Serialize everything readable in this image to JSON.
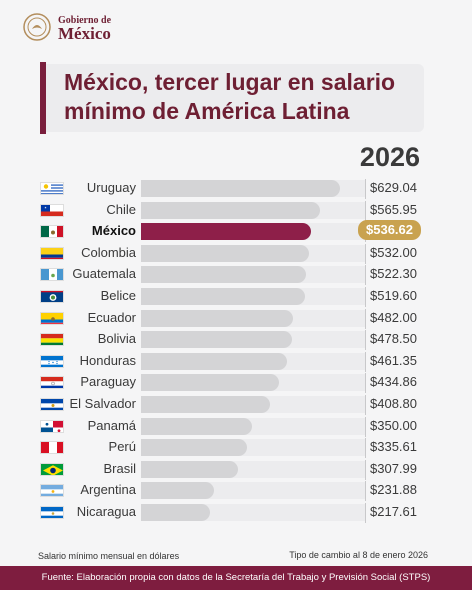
{
  "header": {
    "logo_line1": "Gobierno de",
    "logo_line2": "México",
    "title": "México, tercer lugar en salario mínimo de América Latina",
    "year": "2026"
  },
  "chart_data": {
    "type": "bar",
    "orientation": "horizontal",
    "categories": [
      "Uruguay",
      "Chile",
      "México",
      "Colombia",
      "Guatemala",
      "Belice",
      "Ecuador",
      "Bolivia",
      "Honduras",
      "Paraguay",
      "El Salvador",
      "Panamá",
      "Perú",
      "Brasil",
      "Argentina",
      "Nicaragua"
    ],
    "values": [
      629.04,
      565.95,
      536.62,
      532.0,
      522.3,
      519.6,
      482.0,
      478.5,
      461.35,
      434.86,
      408.8,
      350.0,
      335.61,
      307.99,
      231.88,
      217.61
    ],
    "value_labels": [
      "$629.04",
      "$565.95",
      "$536.62",
      "$532.00",
      "$522.30",
      "$519.60",
      "$482.00",
      "$478.50",
      "$461.35",
      "$434.86",
      "$408.80",
      "$350.00",
      "$335.61",
      "$307.99",
      "$231.88",
      "$217.61"
    ],
    "highlight": "México",
    "highlight_color": "#8e1f49",
    "bar_color": "#d4d4d6",
    "label_highlight_color": "#c9a24f"
  },
  "flags": [
    "uy",
    "cl",
    "mx",
    "co",
    "gt",
    "bz",
    "ec",
    "bo",
    "hn",
    "py",
    "sv",
    "pa",
    "pe",
    "br",
    "ar",
    "ni"
  ],
  "footer": {
    "note": "Salario mínimo mensual en dólares",
    "rate": "Tipo de cambio al 8 de enero 2026",
    "source": "Fuente: Elaboración propia con datos de la Secretaría del Trabajo y Previsión Social (STPS)"
  },
  "colors": {
    "brand": "#7e1d3f",
    "title": "#6e1f33"
  }
}
